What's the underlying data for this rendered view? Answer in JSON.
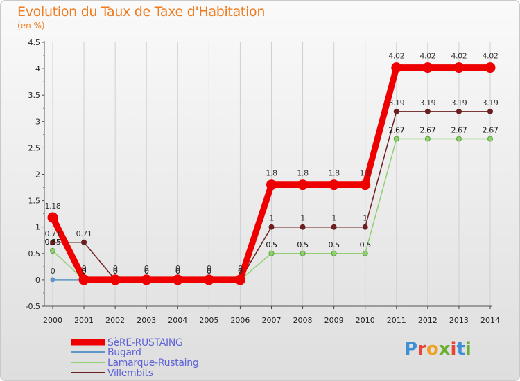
{
  "title": "Evolution du Taux de Taxe d'Habitation",
  "subtitle": "(en %)",
  "logo": "Proxiti",
  "logo_colors": [
    "#3d8fd6",
    "#e6453a",
    "#f0a020",
    "#6ab030",
    "#e6453a",
    "#3d8fd6",
    "#6ab030"
  ],
  "colors": {
    "title": "#f07a1c",
    "grid": "#d0d0d0",
    "legend_text": "#5e63d6"
  },
  "chart_data": {
    "type": "line",
    "title": "Evolution du Taux de Taxe d'Habitation",
    "ylabel": "(en %)",
    "xlabel": "",
    "ylim": [
      -0.5,
      4.5
    ],
    "yticks": [
      "-0.5",
      "0",
      "0.5",
      "1",
      "1.5",
      "2",
      "2.5",
      "3",
      "3.5",
      "4",
      "4.5"
    ],
    "ytick_values": [
      -0.5,
      0,
      0.5,
      1,
      1.5,
      2,
      2.5,
      3,
      3.5,
      4,
      4.5
    ],
    "categories": [
      "2000",
      "2001",
      "2002",
      "2003",
      "2004",
      "2005",
      "2006",
      "2007",
      "2008",
      "2009",
      "2010",
      "2011",
      "2012",
      "2013",
      "2014"
    ],
    "series": [
      {
        "name": "SèRE-RUSTAING",
        "color": "#ee0000",
        "width": 9,
        "marker": 7,
        "values": [
          1.18,
          0,
          0,
          0,
          0,
          0,
          0,
          1.8,
          1.8,
          1.8,
          1.8,
          4.02,
          4.02,
          4.02,
          4.02
        ],
        "labels": [
          "1.18",
          "0",
          "0",
          "0",
          "0",
          "0",
          "0",
          "1.8",
          "1.8",
          "1.8",
          "1.8",
          "4.02",
          "4.02",
          "4.02",
          "4.02"
        ],
        "label_color": "#333333"
      },
      {
        "name": "Bugard",
        "color": "#5f95c8",
        "width": 1.5,
        "marker": 3,
        "values": [
          0,
          0,
          0,
          0,
          0,
          0,
          0,
          null,
          null,
          null,
          null,
          null,
          null,
          null,
          null
        ],
        "labels": [
          "0",
          "0",
          "0",
          "0",
          "0",
          "0",
          "0"
        ],
        "label_color": "#333333"
      },
      {
        "name": "Lamarque-Rustaing",
        "color": "#90d070",
        "width": 1.5,
        "marker": 3.5,
        "values": [
          0.55,
          0,
          0,
          0,
          0,
          0,
          0,
          0.5,
          0.5,
          0.5,
          0.5,
          2.67,
          2.67,
          2.67,
          2.67
        ],
        "labels": [
          "0.55",
          "0",
          "0",
          "0",
          "0",
          "0",
          "0",
          "0.5",
          "0.5",
          "0.5",
          "0.5",
          "2.67",
          "2.67",
          "2.67",
          "2.67"
        ],
        "label_color": "#111111"
      },
      {
        "name": "Villembits",
        "color": "#6a2020",
        "width": 1.5,
        "marker": 3.5,
        "values": [
          0.71,
          0.71,
          0,
          0,
          0,
          0,
          0,
          1,
          1,
          1,
          1,
          3.19,
          3.19,
          3.19,
          3.19
        ],
        "labels": [
          "0.71",
          "0.71",
          "0",
          "0",
          "0",
          "0",
          "0",
          "1",
          "1",
          "1",
          "1",
          "3.19",
          "3.19",
          "3.19",
          "3.19"
        ],
        "label_color": "#333333"
      }
    ],
    "legend_position": "bottom-left"
  }
}
